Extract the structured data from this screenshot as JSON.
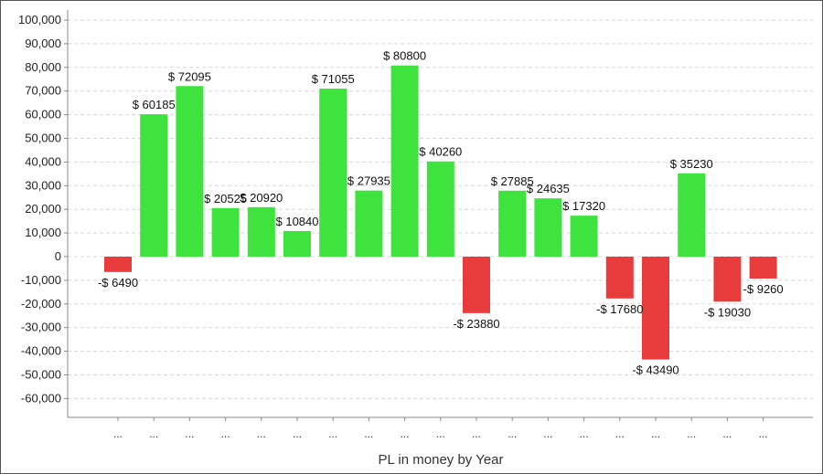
{
  "chart_data": {
    "type": "bar",
    "title": "",
    "xlabel": "PL in money by Year",
    "ylabel": "",
    "ylim": [
      -70000,
      100000
    ],
    "y_ticks": [
      100000,
      90000,
      80000,
      70000,
      60000,
      50000,
      40000,
      30000,
      20000,
      10000,
      0,
      -10000,
      -20000,
      -30000,
      -40000,
      -50000,
      -60000
    ],
    "y_tick_labels": [
      "100,000",
      "90,000",
      "80,000",
      "70,000",
      "60,000",
      "50,000",
      "40,000",
      "30,000",
      "20,000",
      "10,000",
      "0",
      "-10,000",
      "-20,000",
      "-30,000",
      "-40,000",
      "-50,000",
      "-60,000"
    ],
    "grid": true,
    "categories": [
      "...",
      "...",
      "...",
      "...",
      "...",
      "...",
      "...",
      "...",
      "...",
      "...",
      "...",
      "...",
      "...",
      "...",
      "...",
      "...",
      "...",
      "...",
      "..."
    ],
    "values": [
      -6490,
      60185,
      72095,
      20525,
      20920,
      10840,
      71055,
      27935,
      80800,
      40260,
      -23880,
      27885,
      24635,
      17320,
      -17680,
      -43490,
      35230,
      -19030,
      -9260
    ],
    "data_labels": [
      "-$ 6490",
      "$ 60185",
      "$ 72095",
      "$ 20525",
      "$ 20920",
      "$ 10840",
      "$ 71055",
      "$ 27935",
      "$ 80800",
      "$ 40260",
      "-$ 23880",
      "$ 27885",
      "$ 24635",
      "$ 17320",
      "-$ 17680",
      "-$ 43490",
      "$ 35230",
      "-$ 19030",
      "-$ 9260"
    ],
    "colors": {
      "positive": "#3ee33e",
      "negative": "#e83c3c",
      "grid": "#d8d8d8",
      "axis": "#888888"
    }
  }
}
